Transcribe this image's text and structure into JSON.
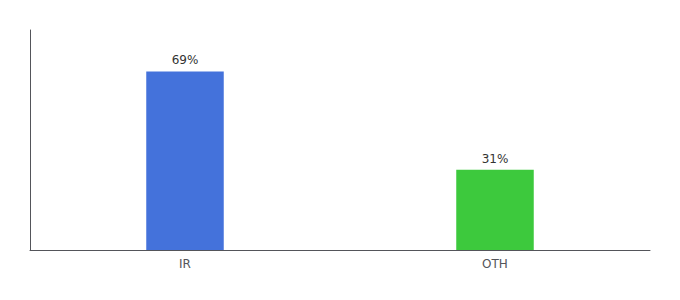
{
  "chart_data": {
    "type": "bar",
    "categories": [
      "IR",
      "OTH"
    ],
    "values": [
      69,
      31
    ],
    "value_labels": [
      "69%",
      "31%"
    ],
    "colors": [
      "#4472DB",
      "#3DC93D"
    ],
    "ylim": [
      0,
      85
    ],
    "data_labels": true,
    "tick_labels": "x",
    "grid": false
  }
}
